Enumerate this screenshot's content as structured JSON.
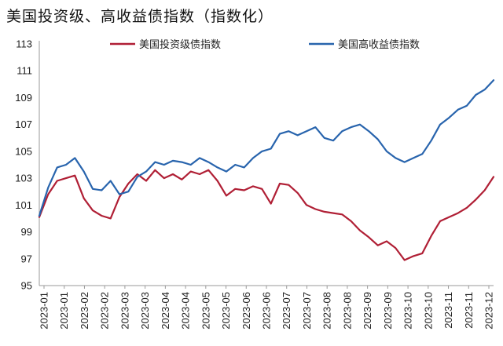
{
  "chart_data": {
    "type": "line",
    "title": "美国投资级、高收益债指数（指数化）",
    "xlabel": "",
    "ylabel": "",
    "ylim": [
      95,
      113
    ],
    "yticks": [
      95,
      97,
      99,
      101,
      103,
      105,
      107,
      109,
      111,
      113
    ],
    "xticks": [
      "2023-01",
      "2023-01",
      "2023-02",
      "2023-02",
      "2023-03",
      "2023-03",
      "2023-04",
      "2023-04",
      "2023-05",
      "2023-05",
      "2023-06",
      "2023-06",
      "2023-07",
      "2023-07",
      "2023-08",
      "2023-08",
      "2023-09",
      "2023-09",
      "2023-10",
      "2023-10",
      "2023-11",
      "2023-11",
      "2023-12"
    ],
    "grid": false,
    "legend_position": "top",
    "x": [
      "2023-01-03",
      "2023-01-10",
      "2023-01-17",
      "2023-01-24",
      "2023-01-31",
      "2023-02-07",
      "2023-02-14",
      "2023-02-21",
      "2023-02-28",
      "2023-03-07",
      "2023-03-14",
      "2023-03-21",
      "2023-03-28",
      "2023-04-04",
      "2023-04-11",
      "2023-04-18",
      "2023-04-25",
      "2023-05-02",
      "2023-05-09",
      "2023-05-16",
      "2023-05-23",
      "2023-05-30",
      "2023-06-06",
      "2023-06-13",
      "2023-06-20",
      "2023-06-27",
      "2023-07-04",
      "2023-07-11",
      "2023-07-18",
      "2023-07-25",
      "2023-08-01",
      "2023-08-08",
      "2023-08-15",
      "2023-08-22",
      "2023-08-29",
      "2023-09-05",
      "2023-09-12",
      "2023-09-19",
      "2023-09-26",
      "2023-10-03",
      "2023-10-10",
      "2023-10-17",
      "2023-10-24",
      "2023-10-31",
      "2023-11-07",
      "2023-11-14",
      "2023-11-21",
      "2023-11-28",
      "2023-12-05",
      "2023-12-12",
      "2023-12-19",
      "2023-12-26"
    ],
    "series": [
      {
        "name": "美国投资级债指数",
        "color": "#b01f35",
        "values": [
          100.1,
          101.8,
          102.8,
          103.0,
          103.2,
          101.5,
          100.6,
          100.2,
          100.0,
          101.6,
          102.6,
          103.3,
          102.8,
          103.6,
          103.0,
          103.3,
          102.9,
          103.5,
          103.3,
          103.6,
          102.8,
          101.7,
          102.2,
          102.1,
          102.4,
          102.2,
          101.1,
          102.6,
          102.5,
          101.9,
          101.0,
          100.7,
          100.5,
          100.4,
          100.3,
          99.8,
          99.1,
          98.6,
          98.0,
          98.3,
          97.8,
          96.9,
          97.2,
          97.4,
          98.7,
          99.8,
          100.1,
          100.4,
          100.8,
          101.4,
          102.1,
          103.1
        ]
      },
      {
        "name": "美国高收益债指数",
        "color": "#2864ad",
        "values": [
          100.2,
          102.3,
          103.8,
          104.0,
          104.5,
          103.5,
          102.2,
          102.1,
          102.8,
          101.8,
          102.0,
          103.1,
          103.5,
          104.2,
          104.0,
          104.3,
          104.2,
          104.0,
          104.5,
          104.2,
          103.8,
          103.5,
          104.0,
          103.8,
          104.5,
          105.0,
          105.2,
          106.3,
          106.5,
          106.2,
          106.5,
          106.8,
          106.0,
          105.8,
          106.5,
          106.8,
          107.0,
          106.5,
          105.9,
          105.0,
          104.5,
          104.2,
          104.5,
          104.8,
          105.8,
          107.0,
          107.5,
          108.1,
          108.4,
          109.2,
          109.6,
          110.3
        ]
      }
    ]
  }
}
